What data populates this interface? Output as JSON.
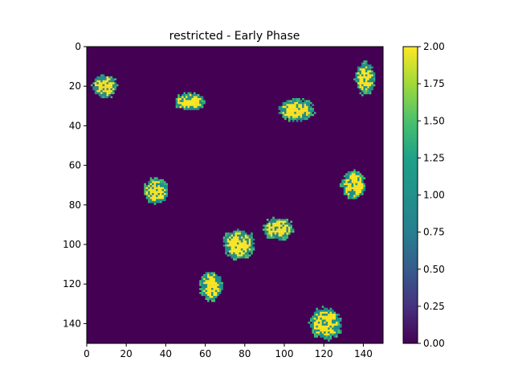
{
  "chart_data": {
    "type": "heatmap",
    "title": "restricted - Early Phase",
    "xlim": [
      0,
      150
    ],
    "ylim": [
      150,
      0
    ],
    "x_ticks": [
      0,
      20,
      40,
      60,
      80,
      100,
      120,
      140
    ],
    "y_ticks": [
      0,
      20,
      40,
      60,
      80,
      100,
      120,
      140
    ],
    "grid_size": [
      150,
      150
    ],
    "background_value": 0,
    "colormap": "viridis",
    "colorbar": {
      "range": [
        0.0,
        2.0
      ],
      "ticks": [
        "0.00",
        "0.25",
        "0.50",
        "0.75",
        "1.00",
        "1.25",
        "1.50",
        "1.75",
        "2.00"
      ]
    },
    "clusters": [
      {
        "x": 9,
        "y": 20,
        "rx": 6,
        "ry": 6,
        "value_center": 2,
        "value_edge": 1
      },
      {
        "x": 52,
        "y": 28,
        "rx": 8,
        "ry": 4.5,
        "value_center": 2,
        "value_edge": 1
      },
      {
        "x": 141,
        "y": 16,
        "rx": 5,
        "ry": 8,
        "value_center": 2,
        "value_edge": 1
      },
      {
        "x": 106,
        "y": 32,
        "rx": 9,
        "ry": 5.5,
        "value_center": 2,
        "value_edge": 1
      },
      {
        "x": 35,
        "y": 73,
        "rx": 6,
        "ry": 6.5,
        "value_center": 2,
        "value_edge": 1
      },
      {
        "x": 135,
        "y": 70,
        "rx": 6,
        "ry": 7,
        "value_center": 2,
        "value_edge": 1
      },
      {
        "x": 97,
        "y": 92,
        "rx": 8,
        "ry": 5.5,
        "value_center": 2,
        "value_edge": 1
      },
      {
        "x": 77,
        "y": 100,
        "rx": 8,
        "ry": 7.5,
        "value_center": 2,
        "value_edge": 1
      },
      {
        "x": 63,
        "y": 121,
        "rx": 5.5,
        "ry": 7.5,
        "value_center": 2,
        "value_edge": 1
      },
      {
        "x": 121,
        "y": 140,
        "rx": 8,
        "ry": 8,
        "value_center": 2,
        "value_edge": 1
      }
    ]
  }
}
